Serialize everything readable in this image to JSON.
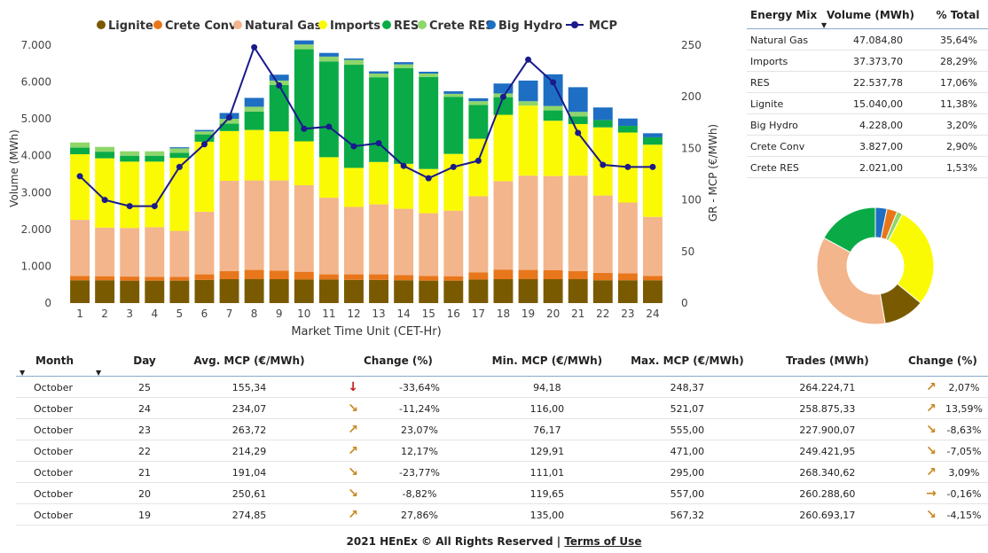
{
  "colors": {
    "Lignite": "#7a5a00",
    "Crete Conv": "#e8761b",
    "Natural Gas": "#f3b58b",
    "Imports": "#fbfa05",
    "RES": "#0aab46",
    "Crete RES": "#8ed66a",
    "Big Hydro": "#1e6fc3",
    "MCP": "#1a1a8c",
    "up": "#c8861d",
    "down": "#c8861d",
    "strong_down": "#c41a1a"
  },
  "chart_data": {
    "type": "bar",
    "stacked": true,
    "title": "",
    "xlabel": "Market Time Unit (CET-Hr)",
    "ylabel": "Volume (MWh)",
    "y2label": "GR - MCP (€/MWh)",
    "ylim": [
      0,
      7000
    ],
    "y2lim": [
      0,
      250
    ],
    "yticks": [
      "0",
      "1.000",
      "2.000",
      "3.000",
      "4.000",
      "5.000",
      "6.000",
      "7.000"
    ],
    "y2ticks": [
      "0",
      "50",
      "100",
      "150",
      "200",
      "250"
    ],
    "legend_position": "top",
    "categories": [
      "1",
      "2",
      "3",
      "4",
      "5",
      "6",
      "7",
      "8",
      "9",
      "10",
      "11",
      "12",
      "13",
      "14",
      "15",
      "16",
      "17",
      "18",
      "19",
      "20",
      "21",
      "22",
      "23",
      "24"
    ],
    "series": [
      {
        "name": "Lignite",
        "values": [
          620,
          620,
          610,
          610,
          610,
          630,
          650,
          650,
          650,
          640,
          640,
          630,
          630,
          620,
          610,
          610,
          640,
          650,
          650,
          650,
          650,
          620,
          620,
          620
        ]
      },
      {
        "name": "Crete Conv",
        "values": [
          120,
          110,
          110,
          100,
          100,
          150,
          220,
          250,
          230,
          210,
          140,
          150,
          150,
          140,
          130,
          120,
          190,
          260,
          250,
          240,
          220,
          200,
          190,
          120
        ]
      },
      {
        "name": "Natural Gas",
        "values": [
          1520,
          1320,
          1320,
          1350,
          1250,
          1700,
          2450,
          2430,
          2450,
          2350,
          2080,
          1830,
          1900,
          1800,
          1700,
          1780,
          2070,
          2400,
          2560,
          2560,
          2590,
          2100,
          1920,
          1600
        ]
      },
      {
        "name": "Imports",
        "values": [
          1780,
          1880,
          1800,
          1780,
          1980,
          1900,
          1350,
          1370,
          1330,
          1190,
          1100,
          1060,
          1150,
          1220,
          1200,
          1540,
          1560,
          1800,
          1900,
          1500,
          1400,
          1850,
          1900,
          1960
        ]
      },
      {
        "name": "RES",
        "values": [
          180,
          180,
          160,
          160,
          140,
          200,
          200,
          500,
          1260,
          2500,
          2600,
          2800,
          2300,
          2600,
          2500,
          1550,
          920,
          480,
          0,
          280,
          210,
          200,
          180,
          200
        ]
      },
      {
        "name": "Crete RES",
        "values": [
          140,
          130,
          120,
          120,
          120,
          80,
          130,
          130,
          120,
          130,
          130,
          130,
          100,
          100,
          90,
          80,
          100,
          100,
          120,
          120,
          120,
          0,
          0,
          0
        ]
      },
      {
        "name": "Big Hydro",
        "values": [
          0,
          0,
          0,
          0,
          30,
          40,
          160,
          240,
          160,
          110,
          100,
          40,
          60,
          60,
          50,
          70,
          80,
          270,
          560,
          860,
          670,
          340,
          200,
          110
        ]
      }
    ],
    "line_series": {
      "name": "MCP",
      "axis": "right",
      "values": [
        123,
        100,
        94,
        94,
        132,
        154,
        180,
        248,
        211,
        169,
        171,
        152,
        155,
        133,
        121,
        132,
        138,
        200,
        236,
        214,
        165,
        134,
        132,
        132
      ]
    }
  },
  "legend": [
    "Lignite",
    "Crete Conv",
    "Natural Gas",
    "Imports",
    "RES",
    "Crete RES",
    "Big Hydro",
    "MCP"
  ],
  "donut_data": [
    {
      "name": "Natural Gas",
      "value": 35.64
    },
    {
      "name": "Imports",
      "value": 28.29
    },
    {
      "name": "RES",
      "value": 17.06
    },
    {
      "name": "Lignite",
      "value": 11.38
    },
    {
      "name": "Big Hydro",
      "value": 3.2
    },
    {
      "name": "Crete Conv",
      "value": 2.9
    },
    {
      "name": "Crete RES",
      "value": 1.53
    }
  ],
  "mix_table": {
    "headers": [
      "Energy Mix",
      "Volume (MWh)",
      "% Total"
    ],
    "rows": [
      [
        "Natural Gas",
        "47.084,80",
        "35,64%"
      ],
      [
        "Imports",
        "37.373,70",
        "28,29%"
      ],
      [
        "RES",
        "22.537,78",
        "17,06%"
      ],
      [
        "Lignite",
        "15.040,00",
        "11,38%"
      ],
      [
        "Big Hydro",
        "4.228,00",
        "3,20%"
      ],
      [
        "Crete Conv",
        "3.827,00",
        "2,90%"
      ],
      [
        "Crete RES",
        "2.021,00",
        "1,53%"
      ]
    ]
  },
  "daily_table": {
    "headers": [
      "Month",
      "Day",
      "Avg. MCP (€/MWh)",
      "Change (%)",
      "Min. MCP (€/MWh)",
      "Max. MCP (€/MWh)",
      "Trades (MWh)",
      "Change (%)"
    ],
    "rows": [
      {
        "month": "October",
        "day": "25",
        "avg": "155,34",
        "arrow1": "strong-down",
        "chg1": "-33,64%",
        "min": "94,18",
        "max": "248,37",
        "trades": "264.224,71",
        "arrow2": "up",
        "chg2": "2,07%"
      },
      {
        "month": "October",
        "day": "24",
        "avg": "234,07",
        "arrow1": "down",
        "chg1": "-11,24%",
        "min": "116,00",
        "max": "521,07",
        "trades": "258.875,33",
        "arrow2": "up",
        "chg2": "13,59%"
      },
      {
        "month": "October",
        "day": "23",
        "avg": "263,72",
        "arrow1": "up",
        "chg1": "23,07%",
        "min": "76,17",
        "max": "555,00",
        "trades": "227.900,07",
        "arrow2": "down",
        "chg2": "-8,63%"
      },
      {
        "month": "October",
        "day": "22",
        "avg": "214,29",
        "arrow1": "up",
        "chg1": "12,17%",
        "min": "129,91",
        "max": "471,00",
        "trades": "249.421,95",
        "arrow2": "down",
        "chg2": "-7,05%"
      },
      {
        "month": "October",
        "day": "21",
        "avg": "191,04",
        "arrow1": "down",
        "chg1": "-23,77%",
        "min": "111,01",
        "max": "295,00",
        "trades": "268.340,62",
        "arrow2": "up",
        "chg2": "3,09%"
      },
      {
        "month": "October",
        "day": "20",
        "avg": "250,61",
        "arrow1": "down",
        "chg1": "-8,82%",
        "min": "119,65",
        "max": "557,00",
        "trades": "260.288,60",
        "arrow2": "flat",
        "chg2": "-0,16%"
      },
      {
        "month": "October",
        "day": "19",
        "avg": "274,85",
        "arrow1": "up",
        "chg1": "27,86%",
        "min": "135,00",
        "max": "567,32",
        "trades": "260.693,17",
        "arrow2": "down",
        "chg2": "-4,15%"
      }
    ]
  },
  "footer": {
    "text": "2021 HEnEx © All Rights Reserved | ",
    "link": "Terms of Use"
  }
}
